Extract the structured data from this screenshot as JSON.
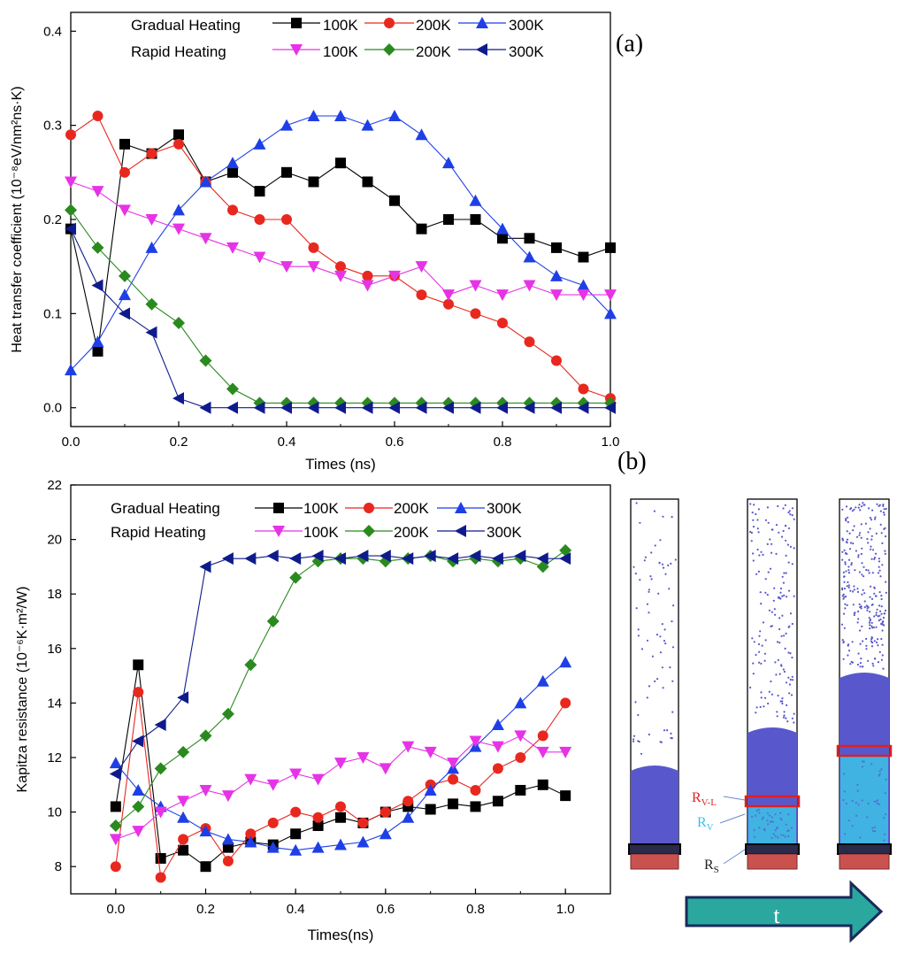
{
  "chart_data": [
    {
      "panel_label": "(a)",
      "type": "line",
      "xlabel": "Times (ns)",
      "ylabel": "Heat transfer coefficient (10⁻⁸eV/nm²ns·K)",
      "xlim": [
        0.0,
        1.0
      ],
      "ylim": [
        -0.02,
        0.42
      ],
      "xticks": [
        "0.0",
        "0.2",
        "0.4",
        "0.6",
        "0.8",
        "1.0"
      ],
      "yticks": [
        "0.0",
        "0.1",
        "0.2",
        "0.3",
        "0.4"
      ],
      "legend": {
        "groups": [
          "Gradual Heating",
          "Rapid Heating"
        ],
        "labels": [
          "100K",
          "200K",
          "300K",
          "100K",
          "200K",
          "300K"
        ],
        "placement": "top"
      },
      "series": [
        {
          "name": "Gradual Heating 100K",
          "color": "#000000",
          "marker": "square",
          "x": [
            0.0,
            0.05,
            0.1,
            0.15,
            0.2,
            0.25,
            0.3,
            0.35,
            0.4,
            0.45,
            0.5,
            0.55,
            0.6,
            0.65,
            0.7,
            0.75,
            0.8,
            0.85,
            0.9,
            0.95,
            1.0
          ],
          "y": [
            0.19,
            0.06,
            0.28,
            0.27,
            0.29,
            0.24,
            0.25,
            0.23,
            0.25,
            0.24,
            0.26,
            0.24,
            0.22,
            0.19,
            0.2,
            0.2,
            0.18,
            0.18,
            0.17,
            0.16,
            0.17
          ]
        },
        {
          "name": "Gradual Heating 200K",
          "color": "#e8281e",
          "marker": "circle",
          "x": [
            0.0,
            0.05,
            0.1,
            0.15,
            0.2,
            0.25,
            0.3,
            0.35,
            0.4,
            0.45,
            0.5,
            0.55,
            0.6,
            0.65,
            0.7,
            0.75,
            0.8,
            0.85,
            0.9,
            0.95,
            1.0
          ],
          "y": [
            0.29,
            0.31,
            0.25,
            0.27,
            0.28,
            0.24,
            0.21,
            0.2,
            0.2,
            0.17,
            0.15,
            0.14,
            0.14,
            0.12,
            0.11,
            0.1,
            0.09,
            0.07,
            0.05,
            0.02,
            0.01
          ]
        },
        {
          "name": "Gradual Heating 300K",
          "color": "#1f3fe6",
          "marker": "triangle-up",
          "x": [
            0.0,
            0.05,
            0.1,
            0.15,
            0.2,
            0.25,
            0.3,
            0.35,
            0.4,
            0.45,
            0.5,
            0.55,
            0.6,
            0.65,
            0.7,
            0.75,
            0.8,
            0.85,
            0.9,
            0.95,
            1.0
          ],
          "y": [
            0.04,
            0.07,
            0.12,
            0.17,
            0.21,
            0.24,
            0.26,
            0.28,
            0.3,
            0.31,
            0.31,
            0.3,
            0.31,
            0.29,
            0.26,
            0.22,
            0.19,
            0.16,
            0.14,
            0.13,
            0.1
          ]
        },
        {
          "name": "Rapid Heating 100K",
          "color": "#e633e6",
          "marker": "triangle-down",
          "x": [
            0.0,
            0.05,
            0.1,
            0.15,
            0.2,
            0.25,
            0.3,
            0.35,
            0.4,
            0.45,
            0.5,
            0.55,
            0.6,
            0.65,
            0.7,
            0.75,
            0.8,
            0.85,
            0.9,
            0.95,
            1.0
          ],
          "y": [
            0.24,
            0.23,
            0.21,
            0.2,
            0.19,
            0.18,
            0.17,
            0.16,
            0.15,
            0.15,
            0.14,
            0.13,
            0.14,
            0.15,
            0.12,
            0.13,
            0.12,
            0.13,
            0.12,
            0.12,
            0.12
          ]
        },
        {
          "name": "Rapid Heating 200K",
          "color": "#2a8a1f",
          "marker": "diamond",
          "x": [
            0.0,
            0.05,
            0.1,
            0.15,
            0.2,
            0.25,
            0.3,
            0.35,
            0.4,
            0.45,
            0.5,
            0.55,
            0.6,
            0.65,
            0.7,
            0.75,
            0.8,
            0.85,
            0.9,
            0.95,
            1.0
          ],
          "y": [
            0.21,
            0.17,
            0.14,
            0.11,
            0.09,
            0.05,
            0.02,
            0.005,
            0.005,
            0.005,
            0.005,
            0.005,
            0.005,
            0.005,
            0.005,
            0.005,
            0.005,
            0.005,
            0.005,
            0.005,
            0.005
          ]
        },
        {
          "name": "Rapid Heating 300K",
          "color": "#0f1b8c",
          "marker": "triangle-left",
          "x": [
            0.0,
            0.05,
            0.1,
            0.15,
            0.2,
            0.25,
            0.3,
            0.35,
            0.4,
            0.45,
            0.5,
            0.55,
            0.6,
            0.65,
            0.7,
            0.75,
            0.8,
            0.85,
            0.9,
            0.95,
            1.0
          ],
          "y": [
            0.19,
            0.13,
            0.1,
            0.08,
            0.01,
            0.0,
            0.0,
            0.0,
            0.0,
            0.0,
            0.0,
            0.0,
            0.0,
            0.0,
            0.0,
            0.0,
            0.0,
            0.0,
            0.0,
            0.0,
            0.0
          ]
        }
      ]
    },
    {
      "panel_label": "(b)",
      "type": "line",
      "xlabel": "Times(ns)",
      "ylabel": "Kapitza resistance (10⁻⁶K·m²/W)",
      "xlim": [
        -0.1,
        1.1
      ],
      "ylim": [
        7,
        22
      ],
      "xticks": [
        "0.0",
        "0.2",
        "0.4",
        "0.6",
        "0.8",
        "1.0"
      ],
      "yticks": [
        "8",
        "10",
        "12",
        "14",
        "16",
        "18",
        "20",
        "22"
      ],
      "legend": {
        "groups": [
          "Gradual Heating",
          "Rapid Heating"
        ],
        "labels": [
          "100K",
          "200K",
          "300K",
          "100K",
          "200K",
          "300K"
        ],
        "placement": "top"
      },
      "series": [
        {
          "name": "Gradual Heating 100K",
          "color": "#000000",
          "marker": "square",
          "x": [
            0.0,
            0.05,
            0.1,
            0.15,
            0.2,
            0.25,
            0.3,
            0.35,
            0.4,
            0.45,
            0.5,
            0.55,
            0.6,
            0.65,
            0.7,
            0.75,
            0.8,
            0.85,
            0.9,
            0.95,
            1.0
          ],
          "y": [
            10.2,
            15.4,
            8.3,
            8.6,
            8.0,
            8.7,
            8.9,
            8.8,
            9.2,
            9.5,
            9.8,
            9.6,
            10.0,
            10.2,
            10.1,
            10.3,
            10.2,
            10.4,
            10.8,
            11.0,
            10.6
          ]
        },
        {
          "name": "Gradual Heating 200K",
          "color": "#e8281e",
          "marker": "circle",
          "x": [
            0.0,
            0.05,
            0.1,
            0.15,
            0.2,
            0.25,
            0.3,
            0.35,
            0.4,
            0.45,
            0.5,
            0.55,
            0.6,
            0.65,
            0.7,
            0.75,
            0.8,
            0.85,
            0.9,
            0.95,
            1.0
          ],
          "y": [
            8.0,
            14.4,
            7.6,
            9.0,
            9.4,
            8.2,
            9.2,
            9.6,
            10.0,
            9.8,
            10.2,
            9.6,
            10.0,
            10.4,
            11.0,
            11.2,
            10.8,
            11.6,
            12.0,
            12.8,
            14.0
          ]
        },
        {
          "name": "Gradual Heating 300K",
          "color": "#1f3fe6",
          "marker": "triangle-up",
          "x": [
            0.0,
            0.05,
            0.1,
            0.15,
            0.2,
            0.25,
            0.3,
            0.35,
            0.4,
            0.45,
            0.5,
            0.55,
            0.6,
            0.65,
            0.7,
            0.75,
            0.8,
            0.85,
            0.9,
            0.95,
            1.0
          ],
          "y": [
            11.8,
            10.8,
            10.2,
            9.8,
            9.3,
            9.0,
            8.9,
            8.7,
            8.6,
            8.7,
            8.8,
            8.9,
            9.2,
            9.8,
            10.8,
            11.6,
            12.4,
            13.2,
            14.0,
            14.8,
            15.5
          ]
        },
        {
          "name": "Rapid Heating 100K",
          "color": "#e633e6",
          "marker": "triangle-down",
          "x": [
            0.0,
            0.05,
            0.1,
            0.15,
            0.2,
            0.25,
            0.3,
            0.35,
            0.4,
            0.45,
            0.5,
            0.55,
            0.6,
            0.65,
            0.7,
            0.75,
            0.8,
            0.85,
            0.9,
            0.95,
            1.0
          ],
          "y": [
            9.0,
            9.3,
            10.0,
            10.4,
            10.8,
            10.6,
            11.2,
            11.0,
            11.4,
            11.2,
            11.8,
            12.0,
            11.6,
            12.4,
            12.2,
            11.8,
            12.6,
            12.4,
            12.8,
            12.2,
            12.2
          ]
        },
        {
          "name": "Rapid Heating 200K",
          "color": "#2a8a1f",
          "marker": "diamond",
          "x": [
            0.0,
            0.05,
            0.1,
            0.15,
            0.2,
            0.25,
            0.3,
            0.35,
            0.4,
            0.45,
            0.5,
            0.55,
            0.6,
            0.65,
            0.7,
            0.75,
            0.8,
            0.85,
            0.9,
            0.95,
            1.0
          ],
          "y": [
            9.5,
            10.2,
            11.6,
            12.2,
            12.8,
            13.6,
            15.4,
            17.0,
            18.6,
            19.2,
            19.3,
            19.3,
            19.2,
            19.3,
            19.4,
            19.2,
            19.3,
            19.2,
            19.3,
            19.0,
            19.6
          ]
        },
        {
          "name": "Rapid Heating 300K",
          "color": "#0f1b8c",
          "marker": "triangle-left",
          "x": [
            0.0,
            0.05,
            0.1,
            0.15,
            0.2,
            0.25,
            0.3,
            0.35,
            0.4,
            0.45,
            0.5,
            0.55,
            0.6,
            0.65,
            0.7,
            0.75,
            0.8,
            0.85,
            0.9,
            0.95,
            1.0
          ],
          "y": [
            11.4,
            12.6,
            13.2,
            14.2,
            19.0,
            19.3,
            19.3,
            19.4,
            19.3,
            19.4,
            19.3,
            19.4,
            19.4,
            19.3,
            19.4,
            19.3,
            19.4,
            19.3,
            19.4,
            19.3,
            19.3
          ]
        }
      ]
    }
  ],
  "schematic": {
    "labels": {
      "r_vl_main": "R",
      "r_vl_sub": "V-L",
      "r_v_main": "R",
      "r_v_sub": "V",
      "r_s_main": "R",
      "r_s_sub": "S"
    },
    "arrow_label": "t",
    "colors": {
      "liquid": "#5858cc",
      "vapor_region": "#3cc3e6",
      "substrate": "#c9524f",
      "vl_box": "#e01f1f",
      "arrow": "#2aa8a0",
      "arrow_outline": "#1a2a5a"
    }
  }
}
